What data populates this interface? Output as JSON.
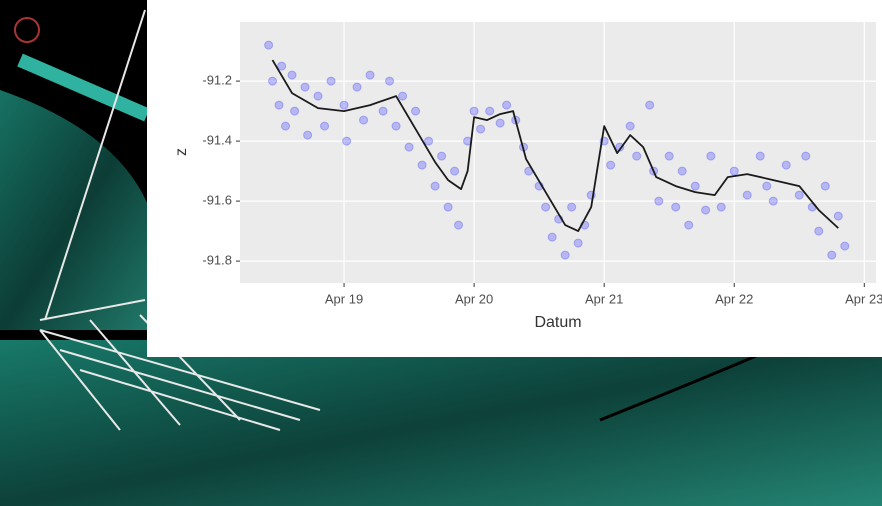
{
  "chart_data": {
    "type": "scatter",
    "xlabel": "Datum",
    "ylabel": "z",
    "xlim": [
      18.2,
      23.09
    ],
    "ylim": [
      -91.873,
      -91.003
    ],
    "xticks": [
      {
        "value": 19,
        "label": "Apr 19"
      },
      {
        "value": 20,
        "label": "Apr 20"
      },
      {
        "value": 21,
        "label": "Apr 21"
      },
      {
        "value": 22,
        "label": "Apr 22"
      },
      {
        "value": 23,
        "label": "Apr 23"
      }
    ],
    "yticks": [
      -91.2,
      -91.4,
      -91.6,
      -91.8
    ],
    "grid": true,
    "series": [
      {
        "type": "scatter",
        "color": "#3b3bff",
        "x": [
          18.42,
          18.45,
          18.5,
          18.52,
          18.55,
          18.6,
          18.62,
          18.7,
          18.72,
          18.8,
          18.85,
          18.9,
          19.0,
          19.02,
          19.1,
          19.15,
          19.2,
          19.3,
          19.35,
          19.4,
          19.45,
          19.5,
          19.55,
          19.6,
          19.65,
          19.7,
          19.75,
          19.8,
          19.85,
          19.88,
          19.95,
          20.0,
          20.05,
          20.12,
          20.2,
          20.25,
          20.32,
          20.38,
          20.42,
          20.5,
          20.55,
          20.6,
          20.65,
          20.7,
          20.75,
          20.8,
          20.85,
          20.9,
          21.0,
          21.05,
          21.12,
          21.2,
          21.25,
          21.35,
          21.38,
          21.42,
          21.5,
          21.55,
          21.6,
          21.65,
          21.7,
          21.78,
          21.82,
          21.9,
          22.0,
          22.1,
          22.2,
          22.25,
          22.3,
          22.4,
          22.5,
          22.55,
          22.6,
          22.65,
          22.7,
          22.75,
          22.8,
          22.85
        ],
        "values": [
          -91.08,
          -91.2,
          -91.28,
          -91.15,
          -91.35,
          -91.18,
          -91.3,
          -91.22,
          -91.38,
          -91.25,
          -91.35,
          -91.2,
          -91.28,
          -91.4,
          -91.22,
          -91.33,
          -91.18,
          -91.3,
          -91.2,
          -91.35,
          -91.25,
          -91.42,
          -91.3,
          -91.48,
          -91.4,
          -91.55,
          -91.45,
          -91.62,
          -91.5,
          -91.68,
          -91.4,
          -91.3,
          -91.36,
          -91.3,
          -91.34,
          -91.28,
          -91.33,
          -91.42,
          -91.5,
          -91.55,
          -91.62,
          -91.72,
          -91.66,
          -91.78,
          -91.62,
          -91.74,
          -91.68,
          -91.58,
          -91.4,
          -91.48,
          -91.42,
          -91.35,
          -91.45,
          -91.28,
          -91.5,
          -91.6,
          -91.45,
          -91.62,
          -91.5,
          -91.68,
          -91.55,
          -91.63,
          -91.45,
          -91.62,
          -91.5,
          -91.58,
          -91.45,
          -91.55,
          -91.6,
          -91.48,
          -91.58,
          -91.45,
          -91.62,
          -91.7,
          -91.55,
          -91.78,
          -91.65,
          -91.75
        ]
      },
      {
        "type": "line",
        "color": "#1a1a1a",
        "x": [
          18.45,
          18.6,
          18.8,
          19.0,
          19.2,
          19.4,
          19.55,
          19.7,
          19.8,
          19.9,
          19.95,
          20.0,
          20.1,
          20.2,
          20.3,
          20.4,
          20.55,
          20.7,
          20.8,
          20.9,
          21.0,
          21.1,
          21.2,
          21.3,
          21.4,
          21.55,
          21.7,
          21.85,
          21.95,
          22.1,
          22.3,
          22.5,
          22.65,
          22.8
        ],
        "values": [
          -91.13,
          -91.24,
          -91.29,
          -91.3,
          -91.28,
          -91.25,
          -91.36,
          -91.47,
          -91.53,
          -91.56,
          -91.5,
          -91.32,
          -91.33,
          -91.31,
          -91.3,
          -91.46,
          -91.57,
          -91.68,
          -91.7,
          -91.62,
          -91.35,
          -91.44,
          -91.38,
          -91.42,
          -91.52,
          -91.55,
          -91.57,
          -91.58,
          -91.52,
          -91.51,
          -91.53,
          -91.55,
          -91.63,
          -91.69
        ]
      }
    ]
  }
}
